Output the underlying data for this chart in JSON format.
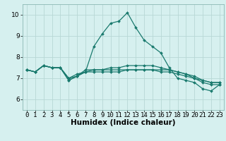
{
  "xlabel": "Humidex (Indice chaleur)",
  "background_color": "#d6f0ef",
  "grid_color": "#b8d8d5",
  "line_color": "#1a7a6e",
  "marker_color": "#1a7a6e",
  "x_values": [
    0,
    1,
    2,
    3,
    4,
    5,
    6,
    7,
    8,
    9,
    10,
    11,
    12,
    13,
    14,
    15,
    16,
    17,
    18,
    19,
    20,
    21,
    22,
    23
  ],
  "series": [
    [
      7.4,
      7.3,
      7.6,
      7.5,
      7.5,
      6.9,
      7.1,
      7.3,
      8.5,
      9.1,
      9.6,
      9.7,
      10.1,
      9.4,
      8.8,
      8.5,
      8.2,
      7.5,
      7.0,
      6.9,
      6.8,
      6.5,
      6.4,
      6.7
    ],
    [
      7.4,
      7.3,
      7.6,
      7.5,
      7.5,
      6.9,
      7.1,
      7.4,
      7.4,
      7.4,
      7.4,
      7.4,
      7.4,
      7.4,
      7.4,
      7.4,
      7.3,
      7.3,
      7.2,
      7.1,
      7.0,
      6.9,
      6.8,
      6.8
    ],
    [
      7.4,
      7.3,
      7.6,
      7.5,
      7.5,
      7.0,
      7.1,
      7.3,
      7.3,
      7.3,
      7.3,
      7.3,
      7.4,
      7.4,
      7.4,
      7.4,
      7.4,
      7.4,
      7.3,
      7.2,
      7.1,
      6.9,
      6.8,
      6.8
    ],
    [
      7.4,
      7.3,
      7.6,
      7.5,
      7.5,
      7.0,
      7.2,
      7.3,
      7.4,
      7.4,
      7.5,
      7.5,
      7.6,
      7.6,
      7.6,
      7.6,
      7.5,
      7.4,
      7.3,
      7.2,
      7.0,
      6.8,
      6.7,
      6.7
    ]
  ],
  "ylim": [
    5.5,
    10.5
  ],
  "xlim": [
    -0.5,
    23.5
  ],
  "yticks": [
    6,
    7,
    8,
    9,
    10
  ],
  "xticks": [
    0,
    1,
    2,
    3,
    4,
    5,
    6,
    7,
    8,
    9,
    10,
    11,
    12,
    13,
    14,
    15,
    16,
    17,
    18,
    19,
    20,
    21,
    22,
    23
  ],
  "tick_fontsize": 6.5,
  "label_fontsize": 7.5,
  "label_fontweight": "bold"
}
